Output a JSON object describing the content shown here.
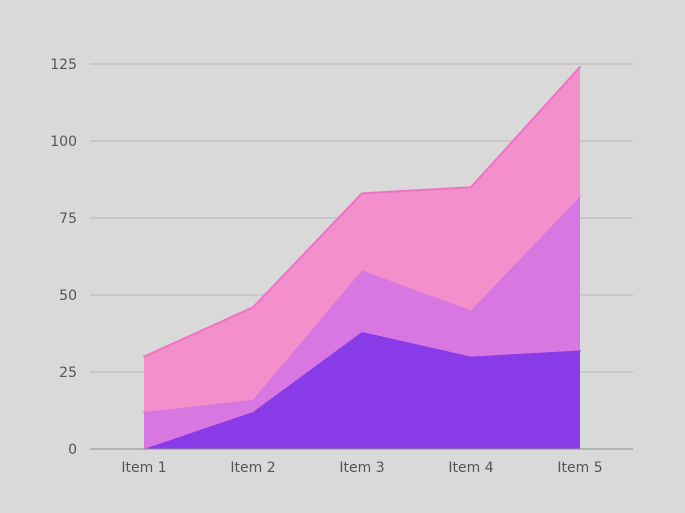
{
  "chart_data": {
    "type": "area",
    "stacked": true,
    "categories": [
      "Item 1",
      "Item 2",
      "Item 3",
      "Item 4",
      "Item 5"
    ],
    "series": [
      {
        "values": [
          0,
          12,
          38,
          30,
          32
        ],
        "color": "#8a3be8"
      },
      {
        "values": [
          12,
          4,
          20,
          15,
          50
        ],
        "color": "#d877e1"
      },
      {
        "values": [
          18,
          30,
          25,
          40,
          42
        ],
        "color": "#f390cb",
        "line_color": "#ef72c4"
      }
    ],
    "ylim": [
      0,
      125
    ],
    "yticks": [
      "0",
      "25",
      "50",
      "75",
      "100",
      "125"
    ],
    "grid": true,
    "legend": false,
    "title": "",
    "xlabel": "",
    "ylabel": ""
  }
}
